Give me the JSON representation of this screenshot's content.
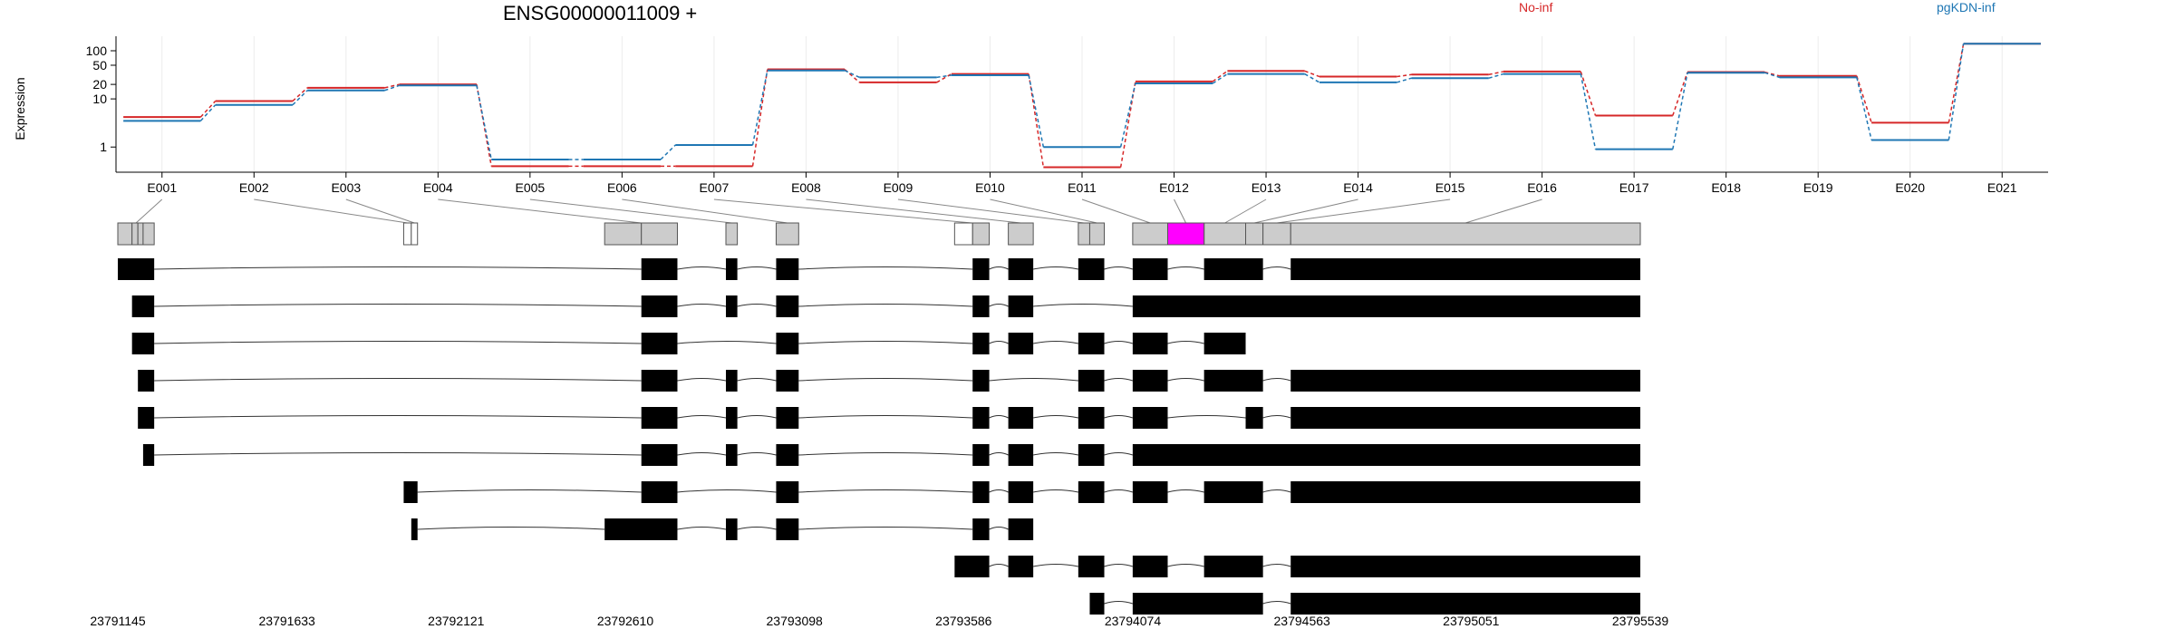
{
  "title": "ENSG00000011009 +",
  "ylabel": "Expression",
  "legend": [
    {
      "label": "No-inf",
      "color": "#d62728"
    },
    {
      "label": "pgKDN-inf",
      "color": "#1f77b4"
    }
  ],
  "chart_data": {
    "type": "line",
    "ylabel": "Expression",
    "yscale": "log",
    "yticks": [
      1,
      10,
      20,
      50,
      100
    ],
    "ylim": [
      0.3,
      200
    ],
    "categories": [
      "E001",
      "E002",
      "E003",
      "E004",
      "E005",
      "E006",
      "E007",
      "E008",
      "E009",
      "E010",
      "E011",
      "E012",
      "E013",
      "E014",
      "E015",
      "E016",
      "E017",
      "E018",
      "E019",
      "E020",
      "E021"
    ],
    "series": [
      {
        "name": "No-inf",
        "color": "#d62728",
        "values": [
          4.2,
          9,
          17,
          20,
          0.4,
          0.4,
          0.4,
          41,
          22,
          33,
          0.38,
          23,
          38,
          29,
          32,
          37,
          4.5,
          36,
          30,
          3.2,
          140
        ]
      },
      {
        "name": "pgKDN-inf",
        "color": "#1f77b4",
        "values": [
          3.5,
          7.5,
          15,
          19,
          0.55,
          0.55,
          1.1,
          39,
          28,
          31,
          1.0,
          21,
          33,
          22,
          27,
          33,
          0.9,
          35,
          28,
          1.4,
          140
        ]
      }
    ]
  },
  "gene_model": {
    "start": 23791145,
    "end": 23795539,
    "axis_ticks": [
      "23791145",
      "23791633",
      "23792121",
      "23792610",
      "23793098",
      "23793586",
      "23794074",
      "23794563",
      "23795051",
      "23795539"
    ],
    "exon_bins": [
      {
        "id": "E001",
        "parts": [
          [
            23791145,
            23791186
          ],
          [
            23791186,
            23791203
          ],
          [
            23791203,
            23791218
          ],
          [
            23791218,
            23791250
          ]
        ]
      },
      {
        "id": "E002",
        "parts": [
          [
            23791970,
            23791992
          ]
        ]
      },
      {
        "id": "E003",
        "parts": [
          [
            23791992,
            23792010
          ]
        ]
      },
      {
        "id": "E004",
        "parts": [
          [
            23792550,
            23792656
          ],
          [
            23792656,
            23792760
          ]
        ]
      },
      {
        "id": "E005",
        "parts": [
          [
            23792900,
            23792933
          ]
        ]
      },
      {
        "id": "E006",
        "parts": [
          [
            23793045,
            23793110
          ]
        ]
      },
      {
        "id": "E007",
        "parts": [
          [
            23793560,
            23793612
          ],
          [
            23793612,
            23793660
          ]
        ]
      },
      {
        "id": "E008",
        "parts": [
          [
            23793715,
            23793787
          ]
        ]
      },
      {
        "id": "E009",
        "parts": [
          [
            23793917,
            23793950
          ]
        ]
      },
      {
        "id": "E010",
        "parts": [
          [
            23793950,
            23793992
          ]
        ]
      },
      {
        "id": "E011",
        "parts": [
          [
            23794074,
            23794175
          ]
        ]
      },
      {
        "id": "E012",
        "parts": [
          [
            23794175,
            23794280
          ]
        ]
      },
      {
        "id": "E013",
        "parts": [
          [
            23794280,
            23794400
          ]
        ]
      },
      {
        "id": "E014",
        "parts": [
          [
            23794400,
            23794450
          ]
        ]
      },
      {
        "id": "E015",
        "parts": [
          [
            23794450,
            23794530
          ]
        ]
      },
      {
        "id": "E016",
        "parts": [
          [
            23794530,
            23795539
          ]
        ]
      }
    ],
    "highlight_bin": {
      "range": [
        23794175,
        23794280
      ],
      "color": "#ff00ff"
    },
    "transcripts": [
      [
        [
          23791145,
          23791250
        ],
        [
          23792656,
          23792760
        ],
        [
          23792900,
          23792933
        ],
        [
          23793045,
          23793110
        ],
        [
          23793612,
          23793660
        ],
        [
          23793715,
          23793787
        ],
        [
          23793917,
          23793992
        ],
        [
          23794074,
          23794175
        ],
        [
          23794280,
          23794450
        ],
        [
          23794530,
          23795539
        ]
      ],
      [
        [
          23791186,
          23791250
        ],
        [
          23792656,
          23792760
        ],
        [
          23792900,
          23792933
        ],
        [
          23793045,
          23793110
        ],
        [
          23793612,
          23793660
        ],
        [
          23793715,
          23793787
        ],
        [
          23794074,
          23795539
        ]
      ],
      [
        [
          23791186,
          23791250
        ],
        [
          23792656,
          23792760
        ],
        [
          23793045,
          23793110
        ],
        [
          23793612,
          23793660
        ],
        [
          23793715,
          23793787
        ],
        [
          23793917,
          23793992
        ],
        [
          23794074,
          23794175
        ],
        [
          23794280,
          23794400
        ]
      ],
      [
        [
          23791203,
          23791250
        ],
        [
          23792656,
          23792760
        ],
        [
          23792900,
          23792933
        ],
        [
          23793045,
          23793110
        ],
        [
          23793612,
          23793660
        ],
        [
          23793917,
          23793992
        ],
        [
          23794074,
          23794175
        ],
        [
          23794280,
          23794450
        ],
        [
          23794530,
          23795539
        ]
      ],
      [
        [
          23791203,
          23791250
        ],
        [
          23792656,
          23792760
        ],
        [
          23792900,
          23792933
        ],
        [
          23793045,
          23793110
        ],
        [
          23793612,
          23793660
        ],
        [
          23793715,
          23793787
        ],
        [
          23793917,
          23793992
        ],
        [
          23794074,
          23794175
        ],
        [
          23794400,
          23794450
        ],
        [
          23794530,
          23795539
        ]
      ],
      [
        [
          23791218,
          23791250
        ],
        [
          23792656,
          23792760
        ],
        [
          23792900,
          23792933
        ],
        [
          23793045,
          23793110
        ],
        [
          23793612,
          23793660
        ],
        [
          23793715,
          23793787
        ],
        [
          23793917,
          23793992
        ],
        [
          23794074,
          23795539
        ]
      ],
      [
        [
          23791970,
          23792010
        ],
        [
          23792656,
          23792760
        ],
        [
          23793045,
          23793110
        ],
        [
          23793612,
          23793660
        ],
        [
          23793715,
          23793787
        ],
        [
          23793917,
          23793992
        ],
        [
          23794074,
          23794175
        ],
        [
          23794280,
          23794450
        ],
        [
          23794530,
          23795539
        ]
      ],
      [
        [
          23791992,
          23792010
        ],
        [
          23792550,
          23792760
        ],
        [
          23792900,
          23792933
        ],
        [
          23793045,
          23793110
        ],
        [
          23793612,
          23793660
        ],
        [
          23793715,
          23793787
        ]
      ],
      [
        [
          23793560,
          23793660
        ],
        [
          23793715,
          23793787
        ],
        [
          23793917,
          23793992
        ],
        [
          23794074,
          23794175
        ],
        [
          23794280,
          23794450
        ],
        [
          23794530,
          23795539
        ]
      ],
      [
        [
          23793950,
          23793992
        ],
        [
          23794074,
          23794450
        ],
        [
          23794530,
          23795539
        ]
      ]
    ]
  }
}
